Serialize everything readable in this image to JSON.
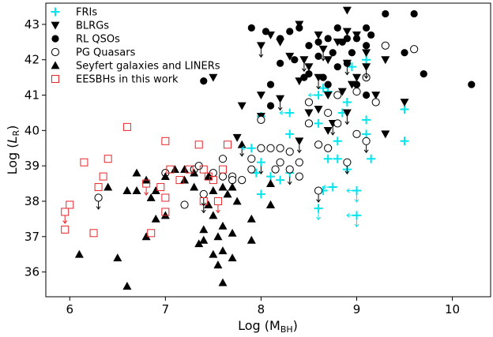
{
  "chart_data": {
    "type": "scatter",
    "title": "",
    "xlabel": "Log (M",
    "xlabel_sub": "BH",
    "xlabel_end": ")",
    "ylabel": "Log (",
    "ylabel_italic": "L",
    "ylabel_sub": "R",
    "ylabel_end": ")",
    "xlim": [
      5.75,
      10.4
    ],
    "ylim": [
      35.3,
      43.6
    ],
    "xticks": [
      6,
      7,
      8,
      9,
      10
    ],
    "yticks": [
      36,
      37,
      38,
      39,
      40,
      41,
      42,
      43
    ],
    "grid": false,
    "legend_position": "top-left",
    "series": [
      {
        "name": "FRIs",
        "marker": "plus",
        "color": "#00e5ee",
        "points": [
          [
            7.9,
            39.5
          ],
          [
            7.95,
            38.8
          ],
          [
            8.0,
            40.4
          ],
          [
            8.0,
            39.1
          ],
          [
            8.0,
            38.2
          ],
          [
            8.1,
            38.7
          ],
          [
            8.2,
            38.6
          ],
          [
            8.3,
            40.5
          ],
          [
            8.3,
            38.8
          ],
          [
            8.3,
            39.9
          ],
          [
            8.6,
            41.0
          ],
          [
            8.6,
            40.2
          ],
          [
            8.6,
            37.8
          ],
          [
            8.65,
            38.3
          ],
          [
            8.65,
            41.2
          ],
          [
            8.7,
            41.1
          ],
          [
            8.7,
            39.2
          ],
          [
            8.75,
            38.4
          ],
          [
            8.8,
            39.7
          ],
          [
            8.8,
            39.2
          ],
          [
            8.85,
            40.5
          ],
          [
            8.9,
            40.8
          ],
          [
            8.9,
            38.9
          ],
          [
            8.95,
            41.8
          ],
          [
            9.0,
            38.3
          ],
          [
            9.0,
            37.6
          ],
          [
            9.1,
            40.3
          ],
          [
            9.1,
            39.9
          ],
          [
            9.15,
            39.2
          ],
          [
            9.5,
            40.6
          ],
          [
            9.5,
            39.7
          ],
          [
            9.1,
            42.0
          ]
        ]
      },
      {
        "name": "BLRGs",
        "marker": "triangle-down",
        "color": "#000000",
        "points": [
          [
            7.5,
            41.5
          ],
          [
            7.75,
            39.8
          ],
          [
            7.8,
            40.7
          ],
          [
            8.0,
            42.4
          ],
          [
            8.0,
            41.0
          ],
          [
            8.0,
            40.4
          ],
          [
            8.1,
            42.7
          ],
          [
            8.2,
            42.5
          ],
          [
            8.2,
            40.9
          ],
          [
            8.3,
            42.1
          ],
          [
            8.4,
            43.0
          ],
          [
            8.4,
            41.4
          ],
          [
            8.45,
            42.0
          ],
          [
            8.5,
            40.5
          ],
          [
            8.5,
            41.8
          ],
          [
            8.6,
            42.7
          ],
          [
            8.6,
            41.5
          ],
          [
            8.6,
            40.6
          ],
          [
            8.65,
            42.3
          ],
          [
            8.7,
            41.0
          ],
          [
            8.7,
            42.0
          ],
          [
            8.75,
            40.2
          ],
          [
            8.8,
            42.5
          ],
          [
            8.85,
            41.1
          ],
          [
            8.9,
            43.4
          ],
          [
            8.9,
            42.8
          ],
          [
            8.9,
            41.9
          ],
          [
            8.9,
            40.5
          ],
          [
            8.95,
            41.3
          ],
          [
            9.0,
            42.7
          ],
          [
            9.0,
            41.5
          ],
          [
            9.1,
            42.2
          ],
          [
            9.1,
            41.8
          ],
          [
            9.2,
            41.0
          ],
          [
            9.3,
            39.9
          ],
          [
            9.5,
            40.8
          ],
          [
            8.7,
            40.0
          ],
          [
            8.4,
            39.7
          ],
          [
            9.3,
            42.0
          ]
        ]
      },
      {
        "name": "RL QSOs",
        "marker": "circle-filled",
        "color": "#000000",
        "points": [
          [
            7.4,
            41.4
          ],
          [
            7.9,
            42.9
          ],
          [
            8.05,
            42.8
          ],
          [
            8.1,
            41.3
          ],
          [
            8.1,
            40.7
          ],
          [
            8.2,
            41.9
          ],
          [
            8.2,
            42.6
          ],
          [
            8.3,
            42.8
          ],
          [
            8.35,
            42.0
          ],
          [
            8.4,
            42.9
          ],
          [
            8.45,
            41.5
          ],
          [
            8.5,
            42.4
          ],
          [
            8.6,
            42.5
          ],
          [
            8.6,
            42.1
          ],
          [
            8.65,
            41.5
          ],
          [
            8.7,
            42.6
          ],
          [
            8.7,
            41.3
          ],
          [
            8.75,
            42.2
          ],
          [
            8.8,
            42.9
          ],
          [
            8.8,
            41.8
          ],
          [
            8.85,
            42.5
          ],
          [
            8.9,
            42.6
          ],
          [
            8.9,
            41.9
          ],
          [
            8.95,
            42.2
          ],
          [
            9.0,
            42.6
          ],
          [
            9.0,
            41.3
          ],
          [
            9.1,
            42.9
          ],
          [
            9.1,
            42.4
          ],
          [
            9.1,
            41.0
          ],
          [
            9.15,
            42.7
          ],
          [
            9.3,
            43.3
          ],
          [
            9.5,
            42.2
          ],
          [
            9.6,
            43.3
          ],
          [
            9.7,
            41.6
          ],
          [
            10.2,
            41.3
          ],
          [
            8.5,
            41.6
          ]
        ]
      },
      {
        "name": "PG Quasars",
        "marker": "circle-open",
        "color": "#000000",
        "points": [
          [
            6.3,
            38.1
          ],
          [
            7.0,
            38.8
          ],
          [
            7.2,
            37.9
          ],
          [
            7.3,
            38.9
          ],
          [
            7.35,
            39.0
          ],
          [
            7.4,
            38.2
          ],
          [
            7.5,
            38.8
          ],
          [
            7.6,
            38.7
          ],
          [
            7.7,
            38.7
          ],
          [
            7.8,
            38.6
          ],
          [
            7.9,
            39.2
          ],
          [
            7.9,
            38.9
          ],
          [
            8.0,
            40.3
          ],
          [
            8.1,
            39.5
          ],
          [
            8.15,
            38.9
          ],
          [
            8.2,
            39.5
          ],
          [
            8.2,
            39.1
          ],
          [
            8.3,
            39.4
          ],
          [
            8.3,
            38.9
          ],
          [
            8.4,
            38.7
          ],
          [
            8.4,
            39.1
          ],
          [
            8.5,
            40.2
          ],
          [
            8.5,
            40.8
          ],
          [
            8.6,
            39.6
          ],
          [
            8.6,
            38.3
          ],
          [
            8.7,
            40.5
          ],
          [
            8.8,
            40.2
          ],
          [
            8.9,
            39.1
          ],
          [
            9.0,
            39.9
          ],
          [
            9.0,
            41.1
          ],
          [
            9.1,
            41.5
          ],
          [
            9.1,
            39.7
          ],
          [
            9.2,
            40.8
          ],
          [
            9.3,
            42.4
          ],
          [
            9.6,
            42.3
          ],
          [
            8.8,
            41.0
          ],
          [
            8.0,
            39.5
          ],
          [
            7.6,
            39.2
          ],
          [
            7.7,
            38.6
          ],
          [
            8.7,
            39.5
          ]
        ]
      },
      {
        "name": "Seyfert galaxies and LINERs",
        "marker": "triangle-up",
        "color": "#000000",
        "points": [
          [
            6.1,
            36.5
          ],
          [
            6.4,
            38.4
          ],
          [
            6.5,
            36.4
          ],
          [
            6.6,
            38.3
          ],
          [
            6.6,
            35.6
          ],
          [
            6.7,
            38.8
          ],
          [
            6.7,
            38.3
          ],
          [
            6.8,
            38.6
          ],
          [
            6.8,
            37.0
          ],
          [
            6.9,
            38.3
          ],
          [
            6.9,
            37.5
          ],
          [
            7.0,
            37.6
          ],
          [
            7.0,
            38.7
          ],
          [
            7.1,
            38.9
          ],
          [
            7.2,
            38.9
          ],
          [
            7.3,
            38.8
          ],
          [
            7.3,
            38.4
          ],
          [
            7.35,
            36.8
          ],
          [
            7.4,
            37.2
          ],
          [
            7.45,
            38.7
          ],
          [
            7.5,
            37.6
          ],
          [
            7.5,
            38.3
          ],
          [
            7.5,
            36.5
          ],
          [
            7.55,
            37.0
          ],
          [
            7.6,
            37.3
          ],
          [
            7.6,
            38.4
          ],
          [
            7.6,
            36.6
          ],
          [
            7.6,
            35.7
          ],
          [
            7.65,
            38.2
          ],
          [
            7.7,
            37.1
          ],
          [
            7.7,
            36.4
          ],
          [
            7.75,
            38.0
          ],
          [
            7.8,
            39.6
          ],
          [
            7.9,
            37.5
          ],
          [
            7.9,
            36.9
          ],
          [
            8.1,
            38.5
          ],
          [
            8.1,
            37.9
          ],
          [
            7.4,
            36.9
          ],
          [
            7.7,
            38.4
          ],
          [
            7.55,
            36.2
          ],
          [
            7.45,
            37.9
          ],
          [
            8.1,
            37.9
          ],
          [
            7.2,
            38.6
          ],
          [
            6.85,
            38.1
          ]
        ]
      },
      {
        "name": "EESBHs in this work",
        "marker": "square-open",
        "color": "#e8262a",
        "points": [
          [
            5.95,
            37.7
          ],
          [
            5.95,
            37.2
          ],
          [
            6.0,
            37.9
          ],
          [
            6.15,
            39.1
          ],
          [
            6.25,
            37.1
          ],
          [
            6.3,
            38.4
          ],
          [
            6.35,
            38.7
          ],
          [
            6.4,
            39.2
          ],
          [
            6.6,
            40.1
          ],
          [
            6.8,
            38.5
          ],
          [
            6.85,
            37.1
          ],
          [
            6.95,
            38.4
          ],
          [
            7.0,
            39.7
          ],
          [
            7.0,
            38.1
          ],
          [
            7.0,
            37.7
          ],
          [
            7.05,
            38.9
          ],
          [
            7.25,
            38.9
          ],
          [
            7.35,
            39.6
          ],
          [
            7.4,
            38.9
          ],
          [
            7.45,
            38.7
          ],
          [
            7.5,
            38.6
          ],
          [
            7.55,
            38.0
          ],
          [
            7.6,
            38.9
          ],
          [
            7.65,
            39.6
          ],
          [
            7.4,
            38.0
          ],
          [
            7.15,
            38.6
          ]
        ]
      }
    ],
    "upper_limits": [
      [
        5.95,
        37.7,
        "#e8262a"
      ],
      [
        6.3,
        38.1,
        "#000000"
      ],
      [
        6.8,
        38.5,
        "#e8262a"
      ],
      [
        7.4,
        38.2,
        "#000000"
      ],
      [
        7.55,
        38.0,
        "#e8262a"
      ],
      [
        7.8,
        39.6,
        "#000000"
      ],
      [
        8.0,
        42.4,
        "#000000"
      ],
      [
        8.2,
        40.9,
        "#000000"
      ],
      [
        8.3,
        38.8,
        "#000000"
      ],
      [
        8.45,
        42.0,
        "#000000"
      ],
      [
        8.6,
        41.5,
        "#000000"
      ],
      [
        8.6,
        38.3,
        "#000000"
      ],
      [
        8.65,
        42.3,
        "#000000"
      ],
      [
        8.75,
        40.2,
        "#000000"
      ],
      [
        8.9,
        40.5,
        "#000000"
      ],
      [
        8.9,
        39.1,
        "#000000"
      ],
      [
        9.0,
        38.3,
        "#00e5ee"
      ],
      [
        9.0,
        37.6,
        "#00e5ee"
      ],
      [
        9.1,
        39.7,
        "#000000"
      ],
      [
        9.1,
        41.8,
        "#000000"
      ],
      [
        8.9,
        41.9,
        "#000000"
      ],
      [
        7.4,
        38.0,
        "#000000"
      ],
      [
        8.6,
        37.8,
        "#00e5ee"
      ],
      [
        8.4,
        39.7,
        "#000000"
      ],
      [
        8.0,
        39.1,
        "#000000"
      ]
    ],
    "left_limits": [
      [
        7.9,
        39.5,
        "#00e5ee"
      ],
      [
        8.3,
        40.5,
        "#00e5ee"
      ],
      [
        8.75,
        38.4,
        "#00e5ee"
      ],
      [
        9.0,
        38.3,
        "#00e5ee"
      ],
      [
        9.0,
        37.6,
        "#00e5ee"
      ],
      [
        8.6,
        41.0,
        "#00e5ee"
      ]
    ]
  }
}
